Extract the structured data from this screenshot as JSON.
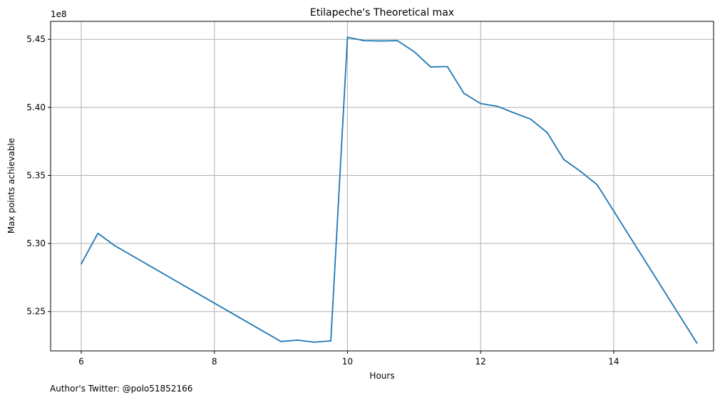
{
  "chart_data": {
    "type": "line",
    "title": "Etilapeche's Theoretical max",
    "xlabel": "Hours",
    "ylabel": "Max points achievable",
    "y_offset_label": "1e8",
    "footnote": "Author's Twitter: @polo51852166",
    "xlim": [
      5.54,
      15.5
    ],
    "ylim": [
      5.2211,
      5.4632
    ],
    "x_ticks": [
      6,
      8,
      10,
      12,
      14
    ],
    "y_ticks": [
      5.25,
      5.3,
      5.35,
      5.4,
      5.45
    ],
    "x_tick_labels": [
      "6",
      "8",
      "10",
      "12",
      "14"
    ],
    "y_tick_labels": [
      "5.25",
      "5.30",
      "5.35",
      "5.40",
      "5.45"
    ],
    "grid": true,
    "line_color": "#1f77b4",
    "grid_color": "#b0b0b0",
    "series": [
      {
        "x": [
          6.0,
          6.25,
          6.5,
          9.0,
          9.25,
          9.5,
          9.75,
          10.0,
          10.25,
          10.5,
          10.75,
          11.0,
          11.25,
          11.5,
          11.75,
          12.0,
          12.25,
          12.5,
          12.75,
          13.0,
          13.25,
          13.5,
          13.75,
          15.25
        ],
        "y": [
          5.285,
          5.3075,
          5.2985,
          5.228,
          5.229,
          5.2275,
          5.2285,
          5.4515,
          5.449,
          5.4488,
          5.449,
          5.441,
          5.4297,
          5.43,
          5.4103,
          5.4028,
          5.4008,
          5.396,
          5.3914,
          5.3815,
          5.3617,
          5.353,
          5.3432,
          5.2268
        ]
      }
    ]
  }
}
